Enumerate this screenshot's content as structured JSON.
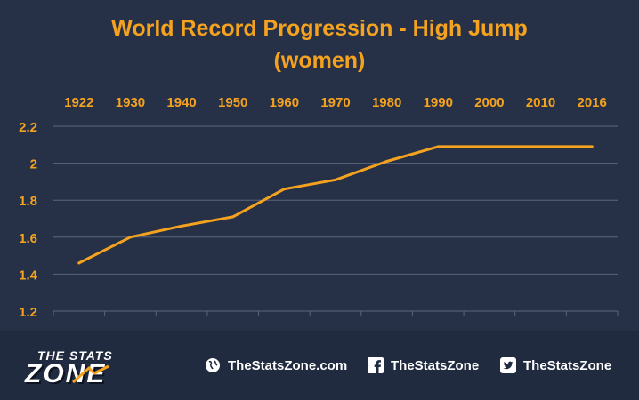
{
  "title": {
    "line1": "World Record Progression - High Jump",
    "line2": "(women)"
  },
  "colors": {
    "background": "#263148",
    "accent": "#F5A31E",
    "grid": "#5d6678",
    "text": "#ffffff"
  },
  "chart_data": {
    "type": "line",
    "title": "World Record Progression - High Jump (women)",
    "xlabel": "",
    "ylabel": "",
    "x_axis_position": "top",
    "categories": [
      "1922",
      "1930",
      "1940",
      "1950",
      "1960",
      "1970",
      "1980",
      "1990",
      "2000",
      "2010",
      "2016"
    ],
    "series": [
      {
        "values": [
          1.46,
          1.6,
          1.66,
          1.71,
          1.86,
          1.91,
          2.01,
          2.09,
          2.09,
          2.09,
          2.09
        ]
      }
    ],
    "yticks": [
      "1.2",
      "1.4",
      "1.6",
      "1.8",
      "2",
      "2.2"
    ],
    "ylim": [
      1.2,
      2.2
    ],
    "grid": true,
    "legend": "none"
  },
  "footer": {
    "logo": {
      "line1": "THE STATS",
      "line2": "ZONE"
    },
    "website": {
      "icon": "globe-icon",
      "label": "TheStatsZone.com"
    },
    "facebook": {
      "icon": "facebook-icon",
      "label": "TheStatsZone"
    },
    "twitter": {
      "icon": "twitter-icon",
      "label": "TheStatsZone"
    }
  }
}
